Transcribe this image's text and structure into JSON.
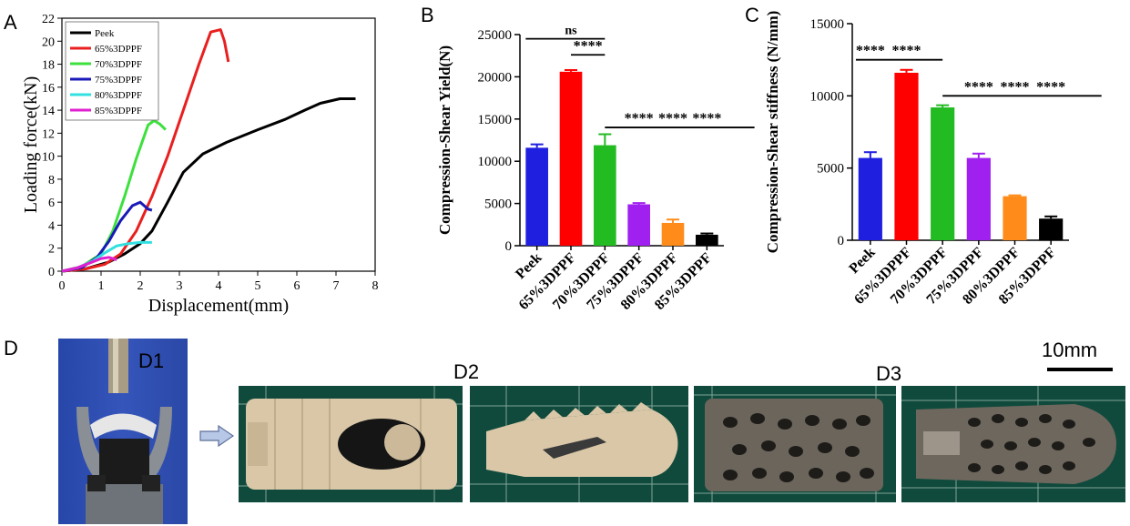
{
  "panels": {
    "A": {
      "letter": "A"
    },
    "B": {
      "letter": "B"
    },
    "C": {
      "letter": "C"
    },
    "D": {
      "letter": "D"
    }
  },
  "chart_data": [
    {
      "id": "A",
      "type": "line",
      "xlabel": "Displacement(mm)",
      "ylabel": "Loading force(kN)",
      "xlim": [
        0,
        8
      ],
      "ylim": [
        0,
        22
      ],
      "xticks": [
        0,
        1,
        2,
        3,
        4,
        5,
        6,
        7,
        8
      ],
      "yticks": [
        0,
        2,
        4,
        6,
        8,
        10,
        12,
        14,
        16,
        18,
        20,
        22
      ],
      "legend_position": "top-left",
      "series": [
        {
          "name": "Peek",
          "color": "#000000",
          "points": [
            [
              0,
              0
            ],
            [
              0.6,
              0.2
            ],
            [
              1.2,
              0.8
            ],
            [
              1.6,
              1.5
            ],
            [
              2,
              2.4
            ],
            [
              2.3,
              3.5
            ],
            [
              2.7,
              6
            ],
            [
              3.1,
              8.6
            ],
            [
              3.6,
              10.2
            ],
            [
              4.2,
              11.2
            ],
            [
              5,
              12.3
            ],
            [
              5.7,
              13.2
            ],
            [
              6.2,
              14
            ],
            [
              6.6,
              14.6
            ],
            [
              7.1,
              15
            ],
            [
              7.5,
              15
            ]
          ]
        },
        {
          "name": "65%3DPPF",
          "color": "#e8201f",
          "points": [
            [
              0,
              0
            ],
            [
              0.6,
              0.2
            ],
            [
              1.1,
              0.6
            ],
            [
              1.5,
              1.5
            ],
            [
              1.9,
              3.5
            ],
            [
              2.3,
              6.5
            ],
            [
              2.7,
              10
            ],
            [
              3.1,
              14
            ],
            [
              3.5,
              18
            ],
            [
              3.8,
              20.8
            ],
            [
              4.05,
              21
            ],
            [
              4.15,
              20
            ],
            [
              4.25,
              18.2
            ]
          ]
        },
        {
          "name": "70%3DPPF",
          "color": "#3de03d",
          "points": [
            [
              0,
              0
            ],
            [
              0.5,
              0.4
            ],
            [
              1,
              1.5
            ],
            [
              1.3,
              3.5
            ],
            [
              1.6,
              6.5
            ],
            [
              1.9,
              9.8
            ],
            [
              2.2,
              12.7
            ],
            [
              2.35,
              13.1
            ],
            [
              2.5,
              12.8
            ],
            [
              2.65,
              12.3
            ]
          ]
        },
        {
          "name": "75%3DPPF",
          "color": "#1a1ab8",
          "points": [
            [
              0,
              0
            ],
            [
              0.5,
              0.3
            ],
            [
              0.9,
              1.2
            ],
            [
              1.2,
              2.6
            ],
            [
              1.5,
              4.4
            ],
            [
              1.8,
              5.7
            ],
            [
              2,
              6
            ],
            [
              2.1,
              5.7
            ],
            [
              2.2,
              5.4
            ],
            [
              2.3,
              5.3
            ]
          ]
        },
        {
          "name": "80%3DPPF",
          "color": "#33e0e0",
          "points": [
            [
              0,
              0
            ],
            [
              0.4,
              0.3
            ],
            [
              0.8,
              0.9
            ],
            [
              1.1,
              1.6
            ],
            [
              1.4,
              2.2
            ],
            [
              1.7,
              2.4
            ],
            [
              2.0,
              2.5
            ],
            [
              2.3,
              2.5
            ]
          ]
        },
        {
          "name": "85%3DPPF",
          "color": "#e020d0",
          "points": [
            [
              0,
              0
            ],
            [
              0.4,
              0.3
            ],
            [
              0.7,
              0.7
            ],
            [
              1,
              1.1
            ],
            [
              1.2,
              1.2
            ],
            [
              1.4,
              1.0
            ]
          ]
        }
      ]
    },
    {
      "id": "B",
      "type": "bar",
      "ylabel": "Compression-Shear Yield(N)",
      "ylim": [
        0,
        25000
      ],
      "yticks": [
        0,
        5000,
        10000,
        15000,
        20000,
        25000
      ],
      "categories": [
        "Peek",
        "65%3DPPF",
        "70%3DPPF",
        "75%3DPPF",
        "80%3DPPF",
        "85%3DPPF"
      ],
      "values": [
        11600,
        20600,
        11900,
        4900,
        2700,
        1300
      ],
      "errors": [
        400,
        200,
        1300,
        150,
        400,
        150
      ],
      "colors": [
        "#1f1fe0",
        "#ff0000",
        "#22bb22",
        "#a020f0",
        "#ff8c1a",
        "#000000"
      ],
      "annotations": [
        {
          "text": "ns",
          "from": 0,
          "to": 2,
          "level": 24500
        },
        {
          "text": "****",
          "from": 1,
          "to": 2,
          "level": 22600
        },
        {
          "text": "****",
          "from": 2,
          "to": 6.4,
          "level": 14000,
          "labels_at": [
            3,
            4,
            5
          ]
        }
      ]
    },
    {
      "id": "C",
      "type": "bar",
      "ylabel": "Compression-Shear stiffness (N/mm)",
      "ylim": [
        0,
        15000
      ],
      "yticks": [
        0,
        5000,
        10000,
        15000
      ],
      "categories": [
        "Peek",
        "65%3DPPF",
        "70%3DPPF",
        "75%3DPPF",
        "80%3DPPF",
        "85%3DPPF"
      ],
      "values": [
        5700,
        11600,
        9200,
        5700,
        3050,
        1500
      ],
      "errors": [
        400,
        200,
        150,
        300,
        60,
        150
      ],
      "colors": [
        "#1f1fe0",
        "#ff0000",
        "#22bb22",
        "#a020f0",
        "#ff8c1a",
        "#000000"
      ],
      "annotations": [
        {
          "text": "****",
          "from": -0.4,
          "to": 2,
          "level": 12500,
          "labels_at": [
            0,
            1
          ]
        },
        {
          "text": "****",
          "from": 2,
          "to": 6.4,
          "level": 10000,
          "labels_at": [
            3,
            4,
            5
          ]
        }
      ]
    }
  ],
  "photos": {
    "d1_label": "D1",
    "d2_label": "D2",
    "d3_label": "D3",
    "scale_bar_label": "10mm"
  }
}
